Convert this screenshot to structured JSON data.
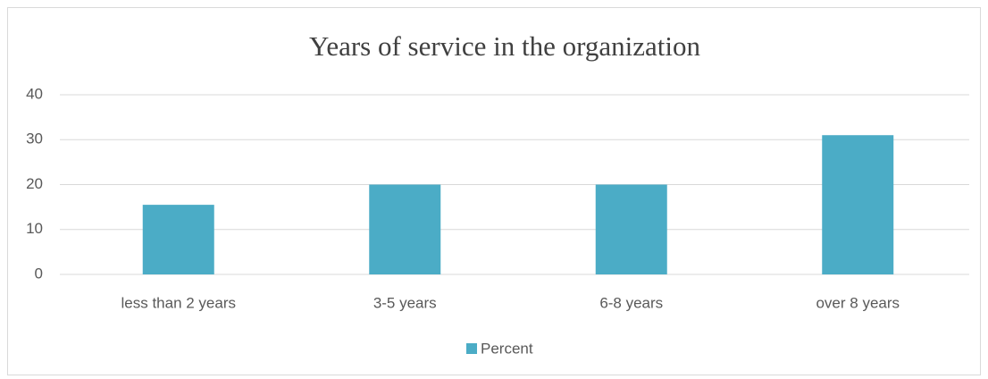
{
  "chart_data": {
    "type": "bar",
    "title": "Years of service in the organization",
    "categories": [
      "less than 2 years",
      "3-5 years",
      "6-8 years",
      "over 8 years"
    ],
    "series": [
      {
        "name": "Percent",
        "color": "#4bacc6",
        "values": [
          15.5,
          20,
          20,
          31
        ]
      }
    ],
    "ylim": [
      0,
      40
    ],
    "yticks": [
      0,
      10,
      20,
      30,
      40
    ],
    "grid": true,
    "legend": "bottom"
  }
}
